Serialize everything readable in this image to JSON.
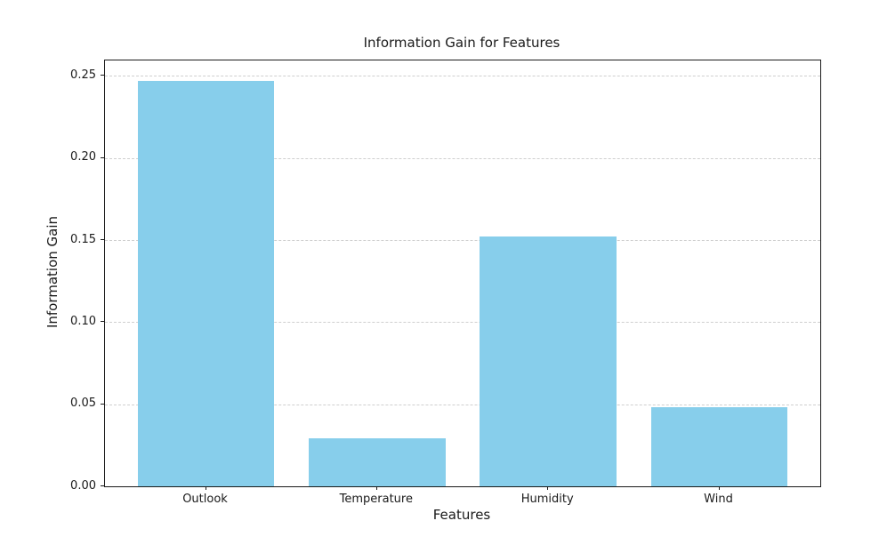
{
  "chart_data": {
    "type": "bar",
    "title": "Information Gain for Features",
    "xlabel": "Features",
    "ylabel": "Information Gain",
    "categories": [
      "Outlook",
      "Temperature",
      "Humidity",
      "Wind"
    ],
    "values": [
      0.247,
      0.029,
      0.152,
      0.048
    ],
    "bar_color": "#87CEEB",
    "bar_width": 0.8,
    "xlim": [
      -0.59,
      3.59
    ],
    "ylim": [
      0,
      0.2594
    ],
    "yticks": [
      0.0,
      0.05,
      0.1,
      0.15,
      0.2,
      0.25
    ],
    "ytick_labels": [
      "0.00",
      "0.05",
      "0.10",
      "0.15",
      "0.20",
      "0.25"
    ],
    "grid": "horizontal-dashed",
    "grid_color": "#cfcfcf",
    "legend_position": "none"
  }
}
